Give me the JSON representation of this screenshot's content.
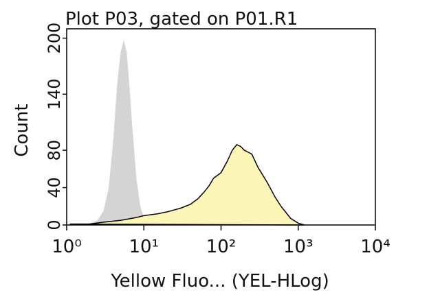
{
  "chart_data": {
    "type": "area",
    "title": "Plot P03, gated on P01.R1",
    "x_label": "Yellow Fluo... (YEL-HLog)",
    "y_label": "Count",
    "log_x": true,
    "xlim": [
      1,
      10000
    ],
    "xticks": [
      {
        "value": 1,
        "label": "10⁰"
      },
      {
        "value": 10,
        "label": "10¹"
      },
      {
        "value": 100,
        "label": "10²"
      },
      {
        "value": 1000,
        "label": "10³"
      },
      {
        "value": 10000,
        "label": "10⁴"
      }
    ],
    "ylim": [
      0,
      210
    ],
    "yticks": [
      0,
      40,
      80,
      140,
      200
    ],
    "series": [
      {
        "color": "#d4d4d4",
        "outline": false,
        "x": [
          1.5,
          2,
          2.5,
          3,
          3.5,
          4,
          4.5,
          5,
          5.5,
          6,
          6.5,
          7,
          8,
          9,
          10,
          11,
          12
        ],
        "values": [
          0,
          2,
          5,
          15,
          40,
          90,
          150,
          185,
          198,
          185,
          150,
          110,
          50,
          20,
          8,
          2,
          0
        ]
      },
      {
        "color": "#fbf5b8",
        "outline": true,
        "x": [
          1.1,
          2,
          3,
          5,
          8,
          10,
          15,
          20,
          30,
          40,
          50,
          60,
          70,
          80,
          100,
          120,
          140,
          160,
          180,
          200,
          250,
          300,
          400,
          500,
          600,
          800,
          1000,
          1200
        ],
        "values": [
          1,
          1,
          3,
          5,
          8,
          10,
          12,
          14,
          18,
          22,
          28,
          35,
          42,
          50,
          56,
          68,
          80,
          86,
          84,
          80,
          76,
          62,
          45,
          30,
          20,
          7,
          2,
          0
        ]
      }
    ]
  }
}
